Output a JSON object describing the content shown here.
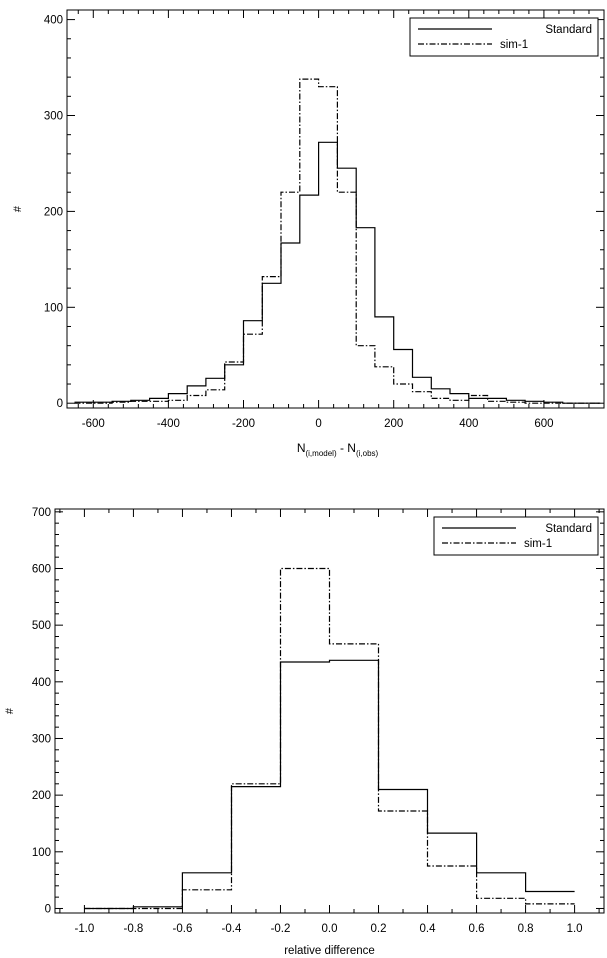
{
  "chart_data": [
    {
      "type": "histogram",
      "xlabel": "N",
      "xlabel_sub1": "(i,model)",
      "xlabel_mid": " - N",
      "xlabel_sub2": "(i,obs)",
      "ylabel": "#",
      "xlim": [
        -670,
        760
      ],
      "ylim": [
        -5,
        410
      ],
      "xticks": [
        "-600",
        "-400",
        "-200",
        "0",
        "200",
        "400",
        "600"
      ],
      "xtick_values": [
        -600,
        -400,
        -200,
        0,
        200,
        400,
        600
      ],
      "yticks": [
        "0",
        "100",
        "200",
        "300",
        "400"
      ],
      "ytick_values": [
        0,
        100,
        200,
        300,
        400
      ],
      "grid": false,
      "legend_position": "top-right",
      "bin_edges": [
        -650,
        -600,
        -550,
        -500,
        -450,
        -400,
        -350,
        -300,
        -250,
        -200,
        -150,
        -100,
        -50,
        0,
        50,
        100,
        150,
        200,
        250,
        300,
        350,
        400,
        450,
        500,
        550,
        600,
        650,
        700,
        750
      ],
      "series": [
        {
          "name": "Standard",
          "style": "solid",
          "values": [
            1,
            1,
            2,
            3,
            5,
            10,
            18,
            26,
            40,
            86,
            125,
            167,
            217,
            272,
            245,
            183,
            90,
            56,
            27,
            15,
            10,
            5,
            5,
            3,
            2,
            1,
            0,
            0
          ]
        },
        {
          "name": "sim-1",
          "style": "dashdot",
          "values": [
            0,
            0,
            1,
            2,
            2,
            3,
            8,
            14,
            43,
            72,
            132,
            220,
            338,
            330,
            220,
            60,
            38,
            20,
            12,
            5,
            3,
            8,
            2,
            1,
            0,
            0,
            0,
            0
          ]
        }
      ]
    },
    {
      "type": "histogram",
      "xlabel": "relative difference",
      "ylabel": "#",
      "xlim": [
        -1.12,
        1.12
      ],
      "ylim": [
        -8,
        705
      ],
      "xticks": [
        "-1.0",
        "-0.8",
        "-0.6",
        "-0.4",
        "-0.2",
        "0.0",
        "0.2",
        "0.4",
        "0.6",
        "0.8",
        "1.0"
      ],
      "xtick_values": [
        -1.0,
        -0.8,
        -0.6,
        -0.4,
        -0.2,
        0.0,
        0.2,
        0.4,
        0.6,
        0.8,
        1.0
      ],
      "yticks": [
        "0",
        "100",
        "200",
        "300",
        "400",
        "500",
        "600",
        "700"
      ],
      "ytick_values": [
        0,
        100,
        200,
        300,
        400,
        500,
        600,
        700
      ],
      "grid": false,
      "legend_position": "top-right",
      "bin_edges": [
        -1.0,
        -0.8,
        -0.6,
        -0.4,
        -0.2,
        0.0,
        0.2,
        0.4,
        0.6,
        0.8,
        1.0
      ],
      "series": [
        {
          "name": "Standard",
          "style": "solid",
          "values": [
            0,
            3,
            63,
            215,
            435,
            438,
            210,
            133,
            63,
            30
          ]
        },
        {
          "name": "sim-1",
          "style": "dashdot",
          "values": [
            0,
            0,
            33,
            220,
            600,
            467,
            172,
            75,
            18,
            8
          ]
        }
      ]
    }
  ]
}
